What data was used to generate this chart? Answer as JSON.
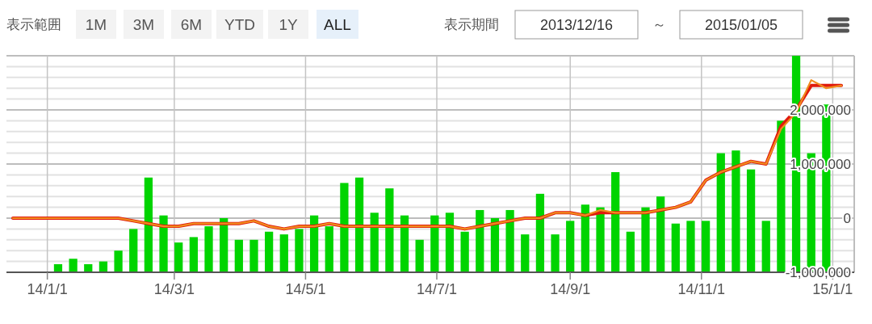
{
  "chart_data": {
    "type": "bar",
    "annotations": [
      "表示範囲",
      "1M",
      "3M",
      "6M",
      "YTD",
      "1Y",
      "ALL",
      "表示期間",
      "2013/12/16",
      "～",
      "2015/01/05"
    ],
    "xlim": [
      "2013-12-13",
      "2015-01-11"
    ],
    "xticks": [
      {
        "value": "2014-01-01",
        "label": "14/1/1"
      },
      {
        "value": "2014-03-01",
        "label": "14/3/1"
      },
      {
        "value": "2014-05-01",
        "label": "14/5/1"
      },
      {
        "value": "2014-07-01",
        "label": "14/7/1"
      },
      {
        "value": "2014-09-01",
        "label": "14/9/1"
      },
      {
        "value": "2014-11-01",
        "label": "14/11/1"
      },
      {
        "value": "2015-01-01",
        "label": "15/1/1"
      }
    ],
    "ylim": [
      -1000000,
      3000000
    ],
    "yticks": [
      {
        "value": -1000000,
        "label": "-1,000,000"
      },
      {
        "value": -800000,
        "label": null
      },
      {
        "value": -600000,
        "label": null
      },
      {
        "value": -400000,
        "label": null
      },
      {
        "value": -200000,
        "label": null
      },
      {
        "value": 0,
        "label": "0"
      },
      {
        "value": 200000,
        "label": null
      },
      {
        "value": 400000,
        "label": null
      },
      {
        "value": 600000,
        "label": null
      },
      {
        "value": 800000,
        "label": null
      },
      {
        "value": 1000000,
        "label": "1,000,000"
      },
      {
        "value": 1200000,
        "label": null
      },
      {
        "value": 1400000,
        "label": null
      },
      {
        "value": 1600000,
        "label": null
      },
      {
        "value": 1800000,
        "label": null
      },
      {
        "value": 2000000,
        "label": "2,000,000"
      },
      {
        "value": 2200000,
        "label": null
      },
      {
        "value": 2400000,
        "label": null
      },
      {
        "value": 2600000,
        "label": null
      },
      {
        "value": 2800000,
        "label": null
      },
      {
        "value": 3000000,
        "label": null
      }
    ],
    "grid": true,
    "series": [
      {
        "type": "bar",
        "color": "#00d400",
        "x": [
          "2014-01-06",
          "2014-01-13",
          "2014-01-20",
          "2014-01-27",
          "2014-02-03",
          "2014-02-10",
          "2014-02-17",
          "2014-02-24",
          "2014-03-03",
          "2014-03-10",
          "2014-03-17",
          "2014-03-24",
          "2014-03-31",
          "2014-04-07",
          "2014-04-14",
          "2014-04-21",
          "2014-04-28",
          "2014-05-05",
          "2014-05-12",
          "2014-05-19",
          "2014-05-26",
          "2014-06-02",
          "2014-06-09",
          "2014-06-16",
          "2014-06-23",
          "2014-06-30",
          "2014-07-07",
          "2014-07-14",
          "2014-07-21",
          "2014-07-28",
          "2014-08-04",
          "2014-08-11",
          "2014-08-18",
          "2014-08-25",
          "2014-09-01",
          "2014-09-08",
          "2014-09-15",
          "2014-09-22",
          "2014-09-29",
          "2014-10-06",
          "2014-10-13",
          "2014-10-20",
          "2014-10-27",
          "2014-11-03",
          "2014-11-10",
          "2014-11-17",
          "2014-11-24",
          "2014-12-01",
          "2014-12-08",
          "2014-12-15",
          "2014-12-22",
          "2014-12-29"
        ],
        "base": [
          -1000000,
          -1000000,
          -1000000,
          -1000000,
          -1000000,
          -1000000,
          -1000000,
          -1000000,
          -1000000,
          -1000000,
          -1000000,
          -1000000,
          -1000000,
          -1000000,
          -1000000,
          -1000000,
          -1000000,
          -1000000,
          -1000000,
          -1000000,
          -1000000,
          -1000000,
          -1000000,
          -1000000,
          -1000000,
          -1000000,
          -1000000,
          -1000000,
          -1000000,
          -1000000,
          -1000000,
          -1000000,
          -1000000,
          -1000000,
          -1000000,
          -1000000,
          -1000000,
          -1000000,
          -1000000,
          -1000000,
          -1000000,
          -1000000,
          -1000000,
          -1000000,
          -1000000,
          -1000000,
          -1000000,
          -1000000,
          -1000000,
          -1000000,
          -1000000,
          -1000000
        ],
        "values": [
          150000,
          250000,
          150000,
          200000,
          400000,
          800000,
          1750000,
          1050000,
          550000,
          650000,
          850000,
          1000000,
          600000,
          600000,
          750000,
          700000,
          800000,
          1050000,
          850000,
          1650000,
          1750000,
          1100000,
          1550000,
          1050000,
          600000,
          1050000,
          1100000,
          750000,
          1150000,
          1000000,
          1150000,
          700000,
          1450000,
          700000,
          950000,
          1250000,
          1200000,
          1850000,
          750000,
          1200000,
          1400000,
          900000,
          950000,
          950000,
          2200000,
          2250000,
          1900000,
          950000,
          2800000,
          4000000,
          2200000,
          3100000
        ]
      },
      {
        "type": "line",
        "color": "#f08c1e",
        "x": [
          "2013-12-16",
          "2013-12-23",
          "2013-12-30",
          "2014-01-06",
          "2014-01-13",
          "2014-01-20",
          "2014-01-27",
          "2014-02-03",
          "2014-02-10",
          "2014-02-17",
          "2014-02-24",
          "2014-03-03",
          "2014-03-10",
          "2014-03-17",
          "2014-03-24",
          "2014-03-31",
          "2014-04-07",
          "2014-04-14",
          "2014-04-21",
          "2014-04-28",
          "2014-05-05",
          "2014-05-12",
          "2014-05-19",
          "2014-05-26",
          "2014-06-02",
          "2014-06-09",
          "2014-06-16",
          "2014-06-23",
          "2014-06-30",
          "2014-07-07",
          "2014-07-14",
          "2014-07-21",
          "2014-07-28",
          "2014-08-04",
          "2014-08-11",
          "2014-08-18",
          "2014-08-25",
          "2014-09-01",
          "2014-09-08",
          "2014-09-15",
          "2014-09-22",
          "2014-09-29",
          "2014-10-06",
          "2014-10-13",
          "2014-10-20",
          "2014-10-27",
          "2014-11-03",
          "2014-11-10",
          "2014-11-17",
          "2014-11-24",
          "2014-12-01",
          "2014-12-08",
          "2014-12-15",
          "2014-12-22",
          "2014-12-29",
          "2015-01-05"
        ],
        "values": [
          0,
          0,
          0,
          0,
          0,
          0,
          0,
          0,
          -50000,
          -100000,
          -150000,
          -150000,
          -100000,
          -100000,
          -100000,
          -100000,
          -50000,
          -150000,
          -200000,
          -150000,
          -150000,
          -100000,
          -150000,
          -150000,
          -150000,
          -150000,
          -150000,
          -150000,
          -150000,
          -150000,
          -200000,
          -150000,
          -100000,
          -50000,
          0,
          0,
          100000,
          100000,
          50000,
          150000,
          100000,
          100000,
          100000,
          150000,
          200000,
          300000,
          700000,
          850000,
          950000,
          1050000,
          1000000,
          1650000,
          1950000,
          2550000,
          2400000,
          2450000
        ]
      },
      {
        "type": "line",
        "color": "#e01a0c",
        "x": [
          "2013-12-16",
          "2013-12-23",
          "2013-12-30",
          "2014-01-06",
          "2014-01-13",
          "2014-01-20",
          "2014-01-27",
          "2014-02-03",
          "2014-02-10",
          "2014-02-17",
          "2014-02-24",
          "2014-03-03",
          "2014-03-10",
          "2014-03-17",
          "2014-03-24",
          "2014-03-31",
          "2014-04-07",
          "2014-04-14",
          "2014-04-21",
          "2014-04-28",
          "2014-05-05",
          "2014-05-12",
          "2014-05-19",
          "2014-05-26",
          "2014-06-02",
          "2014-06-09",
          "2014-06-16",
          "2014-06-23",
          "2014-06-30",
          "2014-07-07",
          "2014-07-14",
          "2014-07-21",
          "2014-07-28",
          "2014-08-04",
          "2014-08-11",
          "2014-08-18",
          "2014-08-25",
          "2014-09-01",
          "2014-09-08",
          "2014-09-15",
          "2014-09-22",
          "2014-09-29",
          "2014-10-06",
          "2014-10-13",
          "2014-10-20",
          "2014-10-27",
          "2014-11-03",
          "2014-11-10",
          "2014-11-17",
          "2014-11-24",
          "2014-12-01",
          "2014-12-08",
          "2014-12-15",
          "2014-12-22",
          "2014-12-29",
          "2015-01-05"
        ],
        "values": [
          0,
          0,
          0,
          0,
          0,
          0,
          0,
          0,
          -50000,
          -100000,
          -150000,
          -150000,
          -100000,
          -100000,
          -100000,
          -100000,
          -50000,
          -150000,
          -200000,
          -150000,
          -150000,
          -100000,
          -150000,
          -150000,
          -150000,
          -150000,
          -150000,
          -150000,
          -150000,
          -150000,
          -200000,
          -150000,
          -100000,
          -50000,
          0,
          0,
          100000,
          100000,
          50000,
          100000,
          100000,
          100000,
          100000,
          150000,
          200000,
          300000,
          700000,
          850000,
          950000,
          1050000,
          1000000,
          1700000,
          2000000,
          2450000,
          2450000,
          2450000
        ]
      }
    ]
  }
}
